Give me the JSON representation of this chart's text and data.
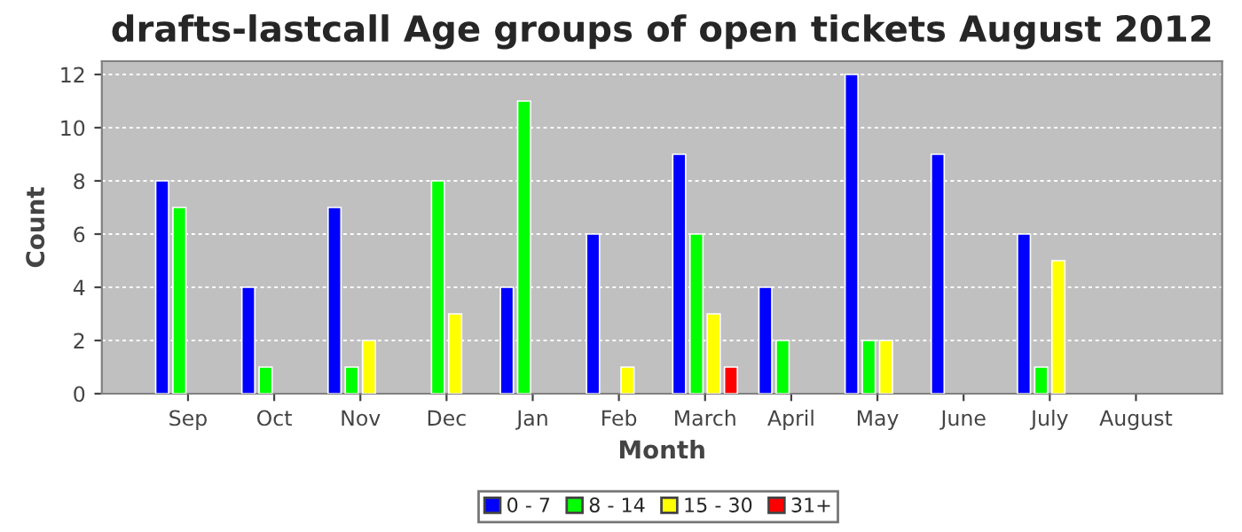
{
  "chart_data": {
    "type": "bar",
    "title": "drafts-lastcall Age groups of open tickets August 2012",
    "xlabel": "Month",
    "ylabel": "Count",
    "categories": [
      "Sep",
      "Oct",
      "Nov",
      "Dec",
      "Jan",
      "Feb",
      "March",
      "April",
      "May",
      "June",
      "July",
      "August"
    ],
    "series": [
      {
        "name": "0 - 7",
        "color": "#0000ff",
        "values": [
          8,
          4,
          7,
          null,
          4,
          6,
          9,
          4,
          12,
          9,
          6,
          null
        ]
      },
      {
        "name": "8 - 14",
        "color": "#00ff00",
        "values": [
          7,
          1,
          1,
          8,
          11,
          null,
          6,
          2,
          2,
          null,
          1,
          null
        ]
      },
      {
        "name": "15 - 30",
        "color": "#ffff00",
        "values": [
          null,
          null,
          2,
          3,
          null,
          1,
          3,
          null,
          2,
          null,
          5,
          null
        ]
      },
      {
        "name": "31+",
        "color": "#ff0000",
        "values": [
          null,
          null,
          null,
          null,
          null,
          null,
          1,
          null,
          null,
          null,
          null,
          null
        ]
      }
    ],
    "ylim": [
      0,
      12.5
    ],
    "yticks": [
      0,
      2,
      4,
      6,
      8,
      10,
      12
    ],
    "grid": "y",
    "legend": "bottom"
  }
}
